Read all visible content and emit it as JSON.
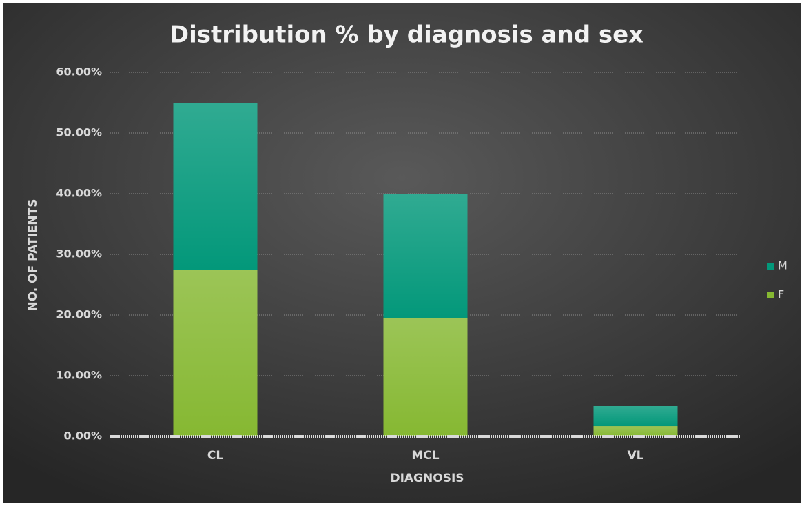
{
  "chart_data": {
    "type": "stacked_bar",
    "title": "Distribution % by diagnosis and sex",
    "x_label": "DIAGNOSIS",
    "y_label": "NO. OF PATIENTS",
    "categories": [
      "CL",
      "MCL",
      "VL"
    ],
    "series": [
      {
        "name": "F",
        "color": "#86b832",
        "values": [
          27.5,
          19.5,
          1.7
        ]
      },
      {
        "name": "M",
        "color": "#03987a",
        "values": [
          27.5,
          20.5,
          3.3
        ]
      }
    ],
    "ylim": [
      0,
      60
    ],
    "yticks": [
      {
        "value": 0,
        "label": "0.00%"
      },
      {
        "value": 10,
        "label": "10.00%"
      },
      {
        "value": 20,
        "label": "20.00%"
      },
      {
        "value": 30,
        "label": "30.00%"
      },
      {
        "value": 40,
        "label": "40.00%"
      },
      {
        "value": 50,
        "label": "50.00%"
      },
      {
        "value": 60,
        "label": "60.00%"
      }
    ],
    "grid": true,
    "legend": "right"
  }
}
